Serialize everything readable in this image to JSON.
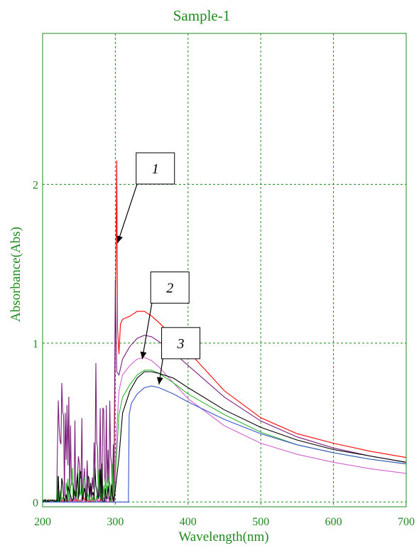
{
  "colors": {
    "axis_text": "#1e8a1e",
    "grid": "#1e8a1e",
    "frame": "#1e8a1e"
  },
  "chart_data": {
    "type": "line",
    "title": "Sample-1",
    "xlabel": "Wavelength(nm)",
    "ylabel": "Absorbance(Abs)",
    "xlim": [
      200,
      700
    ],
    "ylim": [
      -0.03,
      2.95
    ],
    "x_ticks": [
      200,
      300,
      400,
      500,
      600,
      700
    ],
    "x_tick_labels": [
      "200",
      "300",
      "400",
      "500",
      "600",
      "700"
    ],
    "y_ticks": [
      0,
      1,
      2
    ],
    "y_tick_labels": [
      "0",
      "1",
      "2"
    ],
    "grid": true,
    "series": [
      {
        "color": "#ff0000",
        "noise_region": [
          200,
          298
        ],
        "noise_amp": 0.04,
        "points": [
          [
            298,
            0.0
          ],
          [
            301,
            1.6
          ],
          [
            302,
            2.15
          ],
          [
            303,
            1.1
          ],
          [
            305,
            0.93
          ],
          [
            307,
            1.12
          ],
          [
            310,
            1.15
          ],
          [
            320,
            1.17
          ],
          [
            330,
            1.2
          ],
          [
            340,
            1.2
          ],
          [
            350,
            1.17
          ],
          [
            360,
            1.13
          ],
          [
            380,
            1.04
          ],
          [
            400,
            0.95
          ],
          [
            450,
            0.7
          ],
          [
            500,
            0.53
          ],
          [
            550,
            0.43
          ],
          [
            600,
            0.37
          ],
          [
            650,
            0.32
          ],
          [
            700,
            0.28
          ]
        ]
      },
      {
        "color": "#7b1f7b",
        "noise_region": [
          200,
          298
        ],
        "noise_amp": 1.04,
        "points": [
          [
            298,
            0.05
          ],
          [
            300,
            1.4
          ],
          [
            302,
            0.82
          ],
          [
            305,
            0.8
          ],
          [
            310,
            0.9
          ],
          [
            320,
            0.98
          ],
          [
            330,
            1.03
          ],
          [
            340,
            1.05
          ],
          [
            350,
            1.04
          ],
          [
            360,
            1.01
          ],
          [
            380,
            0.94
          ],
          [
            400,
            0.86
          ],
          [
            450,
            0.66
          ],
          [
            500,
            0.51
          ],
          [
            550,
            0.41
          ],
          [
            600,
            0.34
          ],
          [
            650,
            0.29
          ],
          [
            700,
            0.25
          ]
        ]
      },
      {
        "color": "#d060d0",
        "noise_region": [
          200,
          298
        ],
        "noise_amp": 0.05,
        "points": [
          [
            298,
            0.0
          ],
          [
            302,
            0.45
          ],
          [
            305,
            0.7
          ],
          [
            310,
            0.8
          ],
          [
            320,
            0.86
          ],
          [
            330,
            0.9
          ],
          [
            340,
            0.91
          ],
          [
            350,
            0.89
          ],
          [
            360,
            0.85
          ],
          [
            380,
            0.75
          ],
          [
            400,
            0.65
          ],
          [
            450,
            0.48
          ],
          [
            500,
            0.37
          ],
          [
            550,
            0.3
          ],
          [
            600,
            0.25
          ],
          [
            650,
            0.21
          ],
          [
            700,
            0.18
          ]
        ]
      },
      {
        "color": "#2db82d",
        "noise_region": [
          200,
          298
        ],
        "noise_amp": 0.25,
        "points": [
          [
            298,
            0.0
          ],
          [
            305,
            0.55
          ],
          [
            310,
            0.66
          ],
          [
            320,
            0.74
          ],
          [
            330,
            0.8
          ],
          [
            340,
            0.83
          ],
          [
            350,
            0.83
          ],
          [
            360,
            0.81
          ],
          [
            380,
            0.75
          ],
          [
            400,
            0.68
          ],
          [
            450,
            0.55
          ],
          [
            500,
            0.44
          ],
          [
            550,
            0.36
          ],
          [
            600,
            0.31
          ],
          [
            650,
            0.27
          ],
          [
            700,
            0.24
          ]
        ]
      },
      {
        "color": "#000000",
        "noise_region": [
          200,
          298
        ],
        "noise_amp": 0.3,
        "points": [
          [
            298,
            0.0
          ],
          [
            305,
            0.28
          ],
          [
            310,
            0.56
          ],
          [
            320,
            0.7
          ],
          [
            330,
            0.78
          ],
          [
            340,
            0.82
          ],
          [
            350,
            0.82
          ],
          [
            360,
            0.81
          ],
          [
            380,
            0.78
          ],
          [
            400,
            0.72
          ],
          [
            450,
            0.58
          ],
          [
            500,
            0.47
          ],
          [
            550,
            0.39
          ],
          [
            600,
            0.33
          ],
          [
            650,
            0.29
          ],
          [
            700,
            0.25
          ]
        ]
      },
      {
        "color": "#3a55c8",
        "noise_region": null,
        "noise_amp": 0,
        "points": [
          [
            200,
            0.0
          ],
          [
            318,
            0.0
          ],
          [
            319,
            0.55
          ],
          [
            322,
            0.62
          ],
          [
            330,
            0.68
          ],
          [
            340,
            0.72
          ],
          [
            350,
            0.73
          ],
          [
            360,
            0.72
          ],
          [
            380,
            0.68
          ],
          [
            400,
            0.63
          ],
          [
            450,
            0.52
          ],
          [
            500,
            0.43
          ],
          [
            550,
            0.36
          ],
          [
            600,
            0.31
          ],
          [
            650,
            0.27
          ],
          [
            700,
            0.24
          ]
        ]
      }
    ],
    "annotations": [
      {
        "text": "1",
        "box_at": [
          355,
          2.1
        ],
        "arrow_to": [
          303,
          1.63
        ]
      },
      {
        "text": "2",
        "box_at": [
          375,
          1.35
        ],
        "arrow_to": [
          337,
          0.9
        ]
      },
      {
        "text": "3",
        "box_at": [
          390,
          1.0
        ],
        "arrow_to": [
          360,
          0.74
        ]
      }
    ]
  }
}
